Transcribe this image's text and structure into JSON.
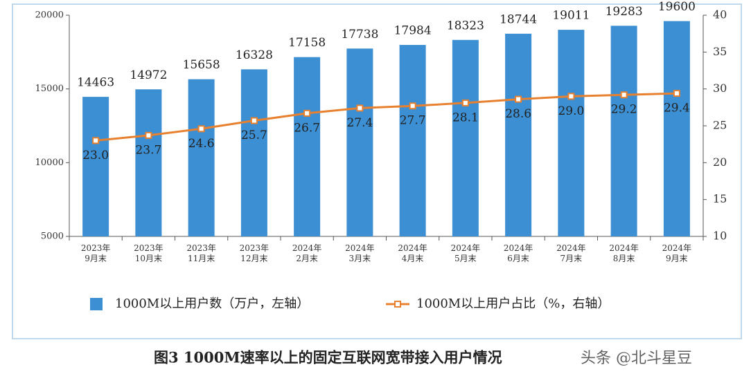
{
  "chart_data": {
    "type": "bar",
    "categories": [
      "2023年\n9月末",
      "2023年\n10月末",
      "2023年\n11月末",
      "2023年\n12月末",
      "2024年\n2月末",
      "2024年\n3月末",
      "2024年\n4月末",
      "2024年\n5月末",
      "2024年\n6月末",
      "2024年\n7月末",
      "2024年\n8月末",
      "2024年\n9月末"
    ],
    "series": [
      {
        "name": "1000M以上用户数（万户，左轴）",
        "type": "bar",
        "color": "#3c8fd2",
        "values": [
          14463,
          14972,
          15658,
          16328,
          17158,
          17738,
          17984,
          18323,
          18744,
          19011,
          19283,
          19600
        ]
      },
      {
        "name": "1000M以上用户占比（%，右轴）",
        "type": "line",
        "axis": "y2",
        "color": "#e8812f",
        "values": [
          23.0,
          23.7,
          24.6,
          25.7,
          26.7,
          27.4,
          27.7,
          28.1,
          28.6,
          29.0,
          29.2,
          29.4
        ],
        "value_labels": [
          "23.0",
          "23.7",
          "24.6",
          "25.7",
          "26.7",
          "27.4",
          "27.7",
          "28.1",
          "28.6",
          "29.0",
          "29.2",
          "29.4"
        ]
      }
    ],
    "ylim": [
      5000,
      20000
    ],
    "yticks": [
      5000,
      10000,
      15000,
      20000
    ],
    "y2lim": [
      10,
      40
    ],
    "y2ticks": [
      10,
      15,
      20,
      25,
      30,
      35,
      40
    ],
    "caption": "图3 1000M速率以上的固定互联网宽带接入用户情况",
    "watermark": "头条 @北斗星豆"
  }
}
